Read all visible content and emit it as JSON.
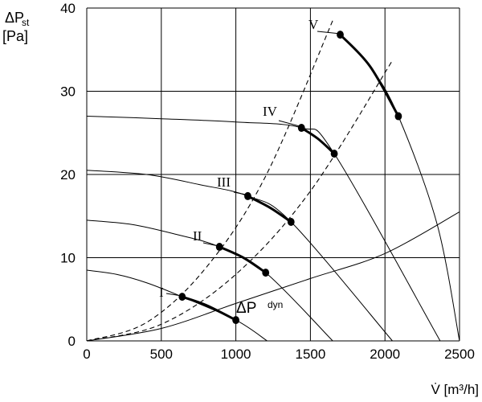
{
  "chart_data": {
    "type": "line",
    "ylabel_top": "ΔP",
    "ylabel_sub": "st",
    "ylabel_unit": "[Pa]",
    "xlabel": "V̇ [m³/h]",
    "xlim": [
      0,
      2500
    ],
    "ylim": [
      0,
      40
    ],
    "xticks": [
      0,
      500,
      1000,
      1500,
      2000,
      2500
    ],
    "yticks": [
      0,
      10,
      20,
      30,
      40
    ],
    "grid": true,
    "fan_curves": [
      {
        "name": "I",
        "x": [
          0,
          200,
          400,
          640,
          1000,
          1210
        ],
        "y": [
          8.5,
          8.0,
          7.0,
          5.3,
          2.5,
          0
        ]
      },
      {
        "name": "II",
        "x": [
          0,
          300,
          600,
          890,
          1200,
          1650
        ],
        "y": [
          14.5,
          14.0,
          12.8,
          11.3,
          8.2,
          0
        ]
      },
      {
        "name": "III",
        "x": [
          0,
          400,
          750,
          1080,
          1370,
          2050
        ],
        "y": [
          20.5,
          20.0,
          18.8,
          17.4,
          14.3,
          0
        ]
      },
      {
        "name": "IV",
        "x": [
          0,
          500,
          1000,
          1440,
          1660,
          2370
        ],
        "y": [
          27,
          26.7,
          26.3,
          25.6,
          22.5,
          0
        ]
      },
      {
        "name": "V",
        "x": [
          1700,
          1900,
          2090,
          2350,
          2500
        ],
        "y": [
          36.8,
          33,
          27,
          14,
          0
        ]
      }
    ],
    "operating_ranges": [
      {
        "name": "I",
        "x": [
          640,
          800,
          1000
        ],
        "y": [
          5.3,
          4.3,
          2.5
        ]
      },
      {
        "name": "II",
        "x": [
          890,
          1050,
          1200
        ],
        "y": [
          11.3,
          10.0,
          8.2
        ]
      },
      {
        "name": "III",
        "x": [
          1080,
          1230,
          1370
        ],
        "y": [
          17.4,
          16.0,
          14.3
        ]
      },
      {
        "name": "IV",
        "x": [
          1440,
          1550,
          1660
        ],
        "y": [
          25.6,
          24.3,
          22.5
        ]
      },
      {
        "name": "V",
        "x": [
          1700,
          1900,
          2090
        ],
        "y": [
          36.8,
          33.0,
          27.0
        ]
      }
    ],
    "points": [
      {
        "x": 640,
        "y": 5.3
      },
      {
        "x": 1000,
        "y": 2.5
      },
      {
        "x": 890,
        "y": 11.3
      },
      {
        "x": 1200,
        "y": 8.2
      },
      {
        "x": 1080,
        "y": 17.4
      },
      {
        "x": 1370,
        "y": 14.3
      },
      {
        "x": 1440,
        "y": 25.6
      },
      {
        "x": 1660,
        "y": 22.5
      },
      {
        "x": 1700,
        "y": 36.8
      },
      {
        "x": 2090,
        "y": 27.0
      }
    ],
    "system_curves_dashed": [
      {
        "x": [
          0,
          400,
          800,
          1200,
          1650
        ],
        "y": [
          0,
          2.2,
          8.8,
          19.8,
          38.5
        ]
      },
      {
        "x": [
          0,
          500,
          1000,
          1500,
          2050
        ],
        "y": [
          0,
          2.0,
          8.0,
          18.0,
          33.7
        ]
      }
    ],
    "dynamic_pressure_curve": {
      "label": "ΔP",
      "label_sub": "dyn",
      "x": [
        0,
        500,
        1000,
        1500,
        2000,
        2500
      ],
      "y": [
        0,
        1.5,
        4.5,
        7.5,
        10.5,
        15.5
      ]
    },
    "roman_labels": [
      "I",
      "II",
      "III",
      "IV",
      "V"
    ]
  }
}
